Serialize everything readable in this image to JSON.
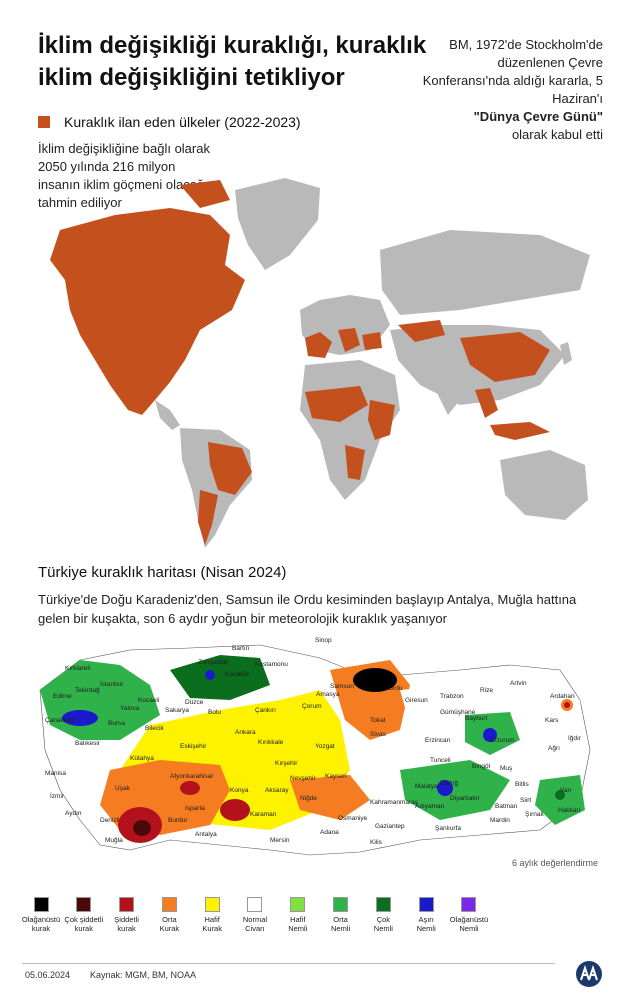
{
  "title": "İklim değişikliği kuraklığı, kuraklık iklim değişikliğini tetikliyor",
  "note_right": {
    "text": "BM, 1972'de Stockholm'de düzenlenen Çevre Konferansı'nda aldığı kararla, 5 Haziran'ı",
    "bold": "\"Dünya Çevre Günü\"",
    "after": "olarak kabul etti"
  },
  "legend_drought": {
    "label": "Kuraklık ilan eden ülkeler (2022-2023)",
    "color": "#c4501e"
  },
  "note_left": "İklim değişikliğine bağlı olarak 2050 yılında 216 milyon insanın iklim göçmeni olacağı tahmin ediliyor",
  "turkey_section": {
    "title": "Türkiye kuraklık haritası (Nisan 2024)",
    "description": "Türkiye'de Doğu Karadeniz'den, Samsun ile Ordu kesiminden başlayıp Antalya, Muğla hattına gelen bir kuşakta, son 6 aydır yoğun bir meteorolojik kuraklık yaşanıyor",
    "assessment": "6 aylık değerlendirme"
  },
  "map_labels": {
    "cities": [
      "Sinop",
      "Bartın",
      "Zonguldak",
      "Kastamonu",
      "Karabük",
      "Kırklareli",
      "Edirne",
      "Tekirdağ",
      "İstanbul",
      "Kocaeli",
      "Düzce",
      "Sakarya",
      "Bolu",
      "Yalova",
      "Bursa",
      "Bilecik",
      "Çanakkale",
      "Balıkesir",
      "Kütahya",
      "Eskişehir",
      "Ankara",
      "Kırıkkale",
      "Çankırı",
      "Çorum",
      "Amasya",
      "Samsun",
      "Ordu",
      "Giresun",
      "Trabzon",
      "Rize",
      "Artvin",
      "Ardahan",
      "Kars",
      "Iğdır",
      "Ağrı",
      "Tokat",
      "Sivas",
      "Gümüşhane",
      "Bayburt",
      "Erzurum",
      "Erzincan",
      "Tunceli",
      "Bingöl",
      "Muş",
      "Van",
      "Bitlis",
      "Siirt",
      "Hakkari",
      "Şırnak",
      "Batman",
      "Mardin",
      "Diyarbakır",
      "Malatya",
      "Elazığ",
      "Adıyaman",
      "Şanlıurfa",
      "Kahramanmaraş",
      "Gaziantep",
      "Kilis",
      "Osmaniye",
      "Adana",
      "Mersin",
      "Niğde",
      "Nevşehir",
      "Kayseri",
      "Kırşehir",
      "Yozgat",
      "Aksaray",
      "Konya",
      "Karaman",
      "Antalya",
      "Isparta",
      "Burdur",
      "Afyonkarahisar",
      "Uşak",
      "Manisa",
      "İzmir",
      "Aydın",
      "Denizli",
      "Muğla"
    ]
  },
  "scale": [
    {
      "label": "Olağanüstü\nkurak",
      "color": "#000000"
    },
    {
      "label": "Çok şiddetli\nkurak",
      "color": "#4a0a0a"
    },
    {
      "label": "Şiddetli\nkurak",
      "color": "#b3121c"
    },
    {
      "label": "Orta\nKurak",
      "color": "#f57c20"
    },
    {
      "label": "Hafif\nKurak",
      "color": "#fff200"
    },
    {
      "label": "Normal\nCivarı",
      "color": "#ffffff"
    },
    {
      "label": "Hafif\nNemli",
      "color": "#7fe040"
    },
    {
      "label": "Orta\nNemli",
      "color": "#2fb24a"
    },
    {
      "label": "Çok\nNemli",
      "color": "#0a6e1e"
    },
    {
      "label": "Aşırı\nNemli",
      "color": "#1a1acc"
    },
    {
      "label": "Olağanüstü\nNemli",
      "color": "#7a2ae6"
    }
  ],
  "footer": {
    "date": "05.06.2024",
    "source": "Kaynak: MGM, BM, NOAA"
  }
}
